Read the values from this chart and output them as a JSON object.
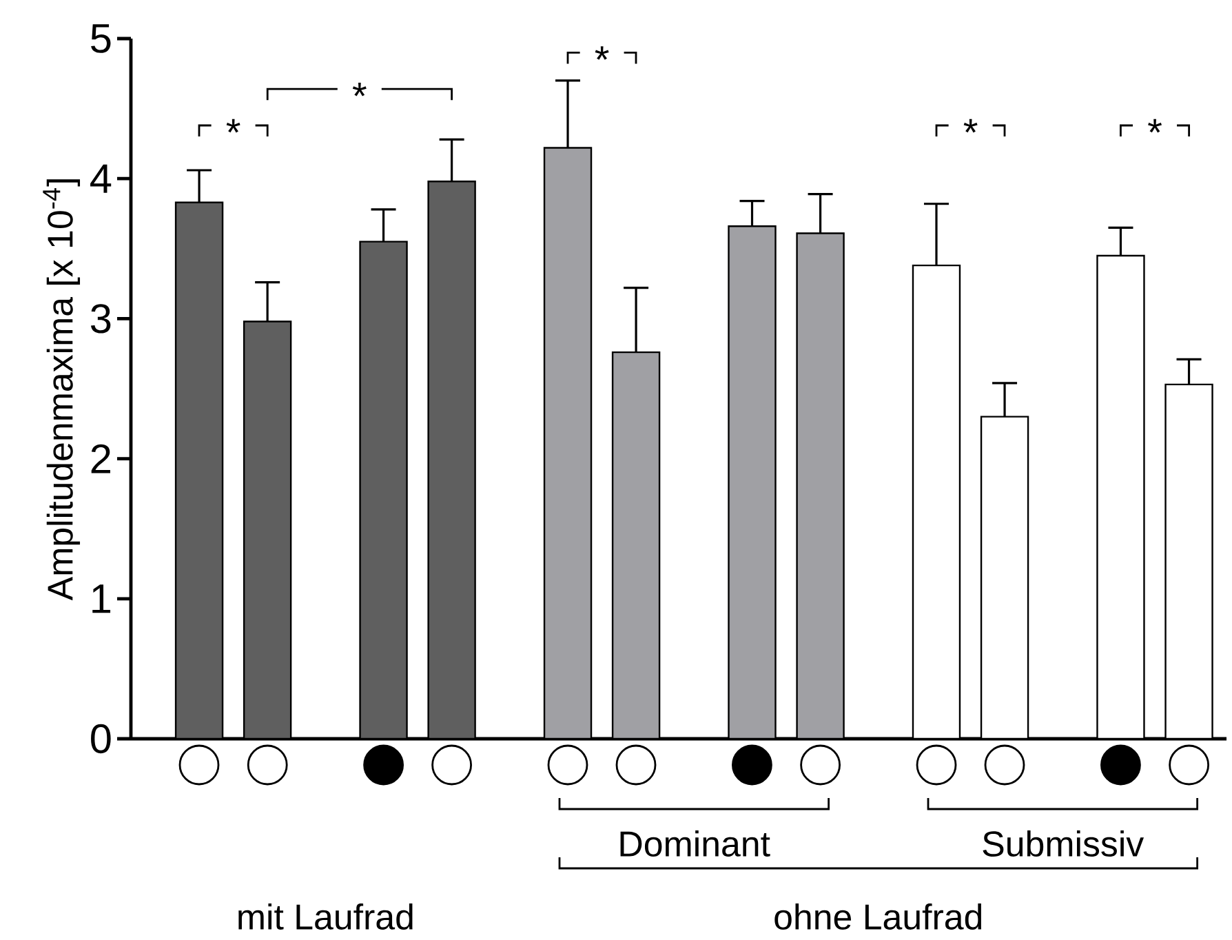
{
  "chart_data": {
    "type": "bar",
    "ylabel": "Amplitudenmaxima [x 10$^{-4}$]",
    "categories": [
      null,
      null,
      null,
      null,
      null,
      null,
      null,
      null,
      null,
      null,
      null,
      null
    ],
    "values": [
      3.83,
      2.98,
      3.55,
      3.98,
      4.22,
      2.76,
      3.66,
      3.61,
      3.38,
      2.3,
      3.45,
      2.53
    ],
    "errors": [
      [
        3.83,
        4.06
      ],
      [
        2.98,
        3.26
      ],
      [
        3.55,
        3.78
      ],
      [
        3.98,
        4.28
      ],
      [
        4.22,
        4.7
      ],
      [
        2.76,
        3.22
      ],
      [
        3.66,
        3.84
      ],
      [
        3.61,
        3.89
      ],
      [
        3.38,
        3.82
      ],
      [
        2.3,
        2.54
      ],
      [
        3.45,
        3.65
      ],
      [
        2.53,
        2.71
      ]
    ],
    "colors": [
      "#5f5f5f",
      "#5f5f5f",
      "#5f5f5f",
      "#5f5f5f",
      "#a0a0a4",
      "#a0a0a4",
      "#a0a0a4",
      "#a0a0a4",
      "#ffffff",
      "#ffffff",
      "#ffffff",
      "#ffffff"
    ],
    "ylim": [
      0,
      5
    ],
    "yticks": [
      0,
      1,
      2,
      3,
      4,
      5
    ],
    "annotations": [
      "*",
      "*",
      "*",
      "*",
      "*",
      "Dominant",
      "Submissiv",
      "mit Laufrad",
      "ohne Laufrad"
    ]
  }
}
